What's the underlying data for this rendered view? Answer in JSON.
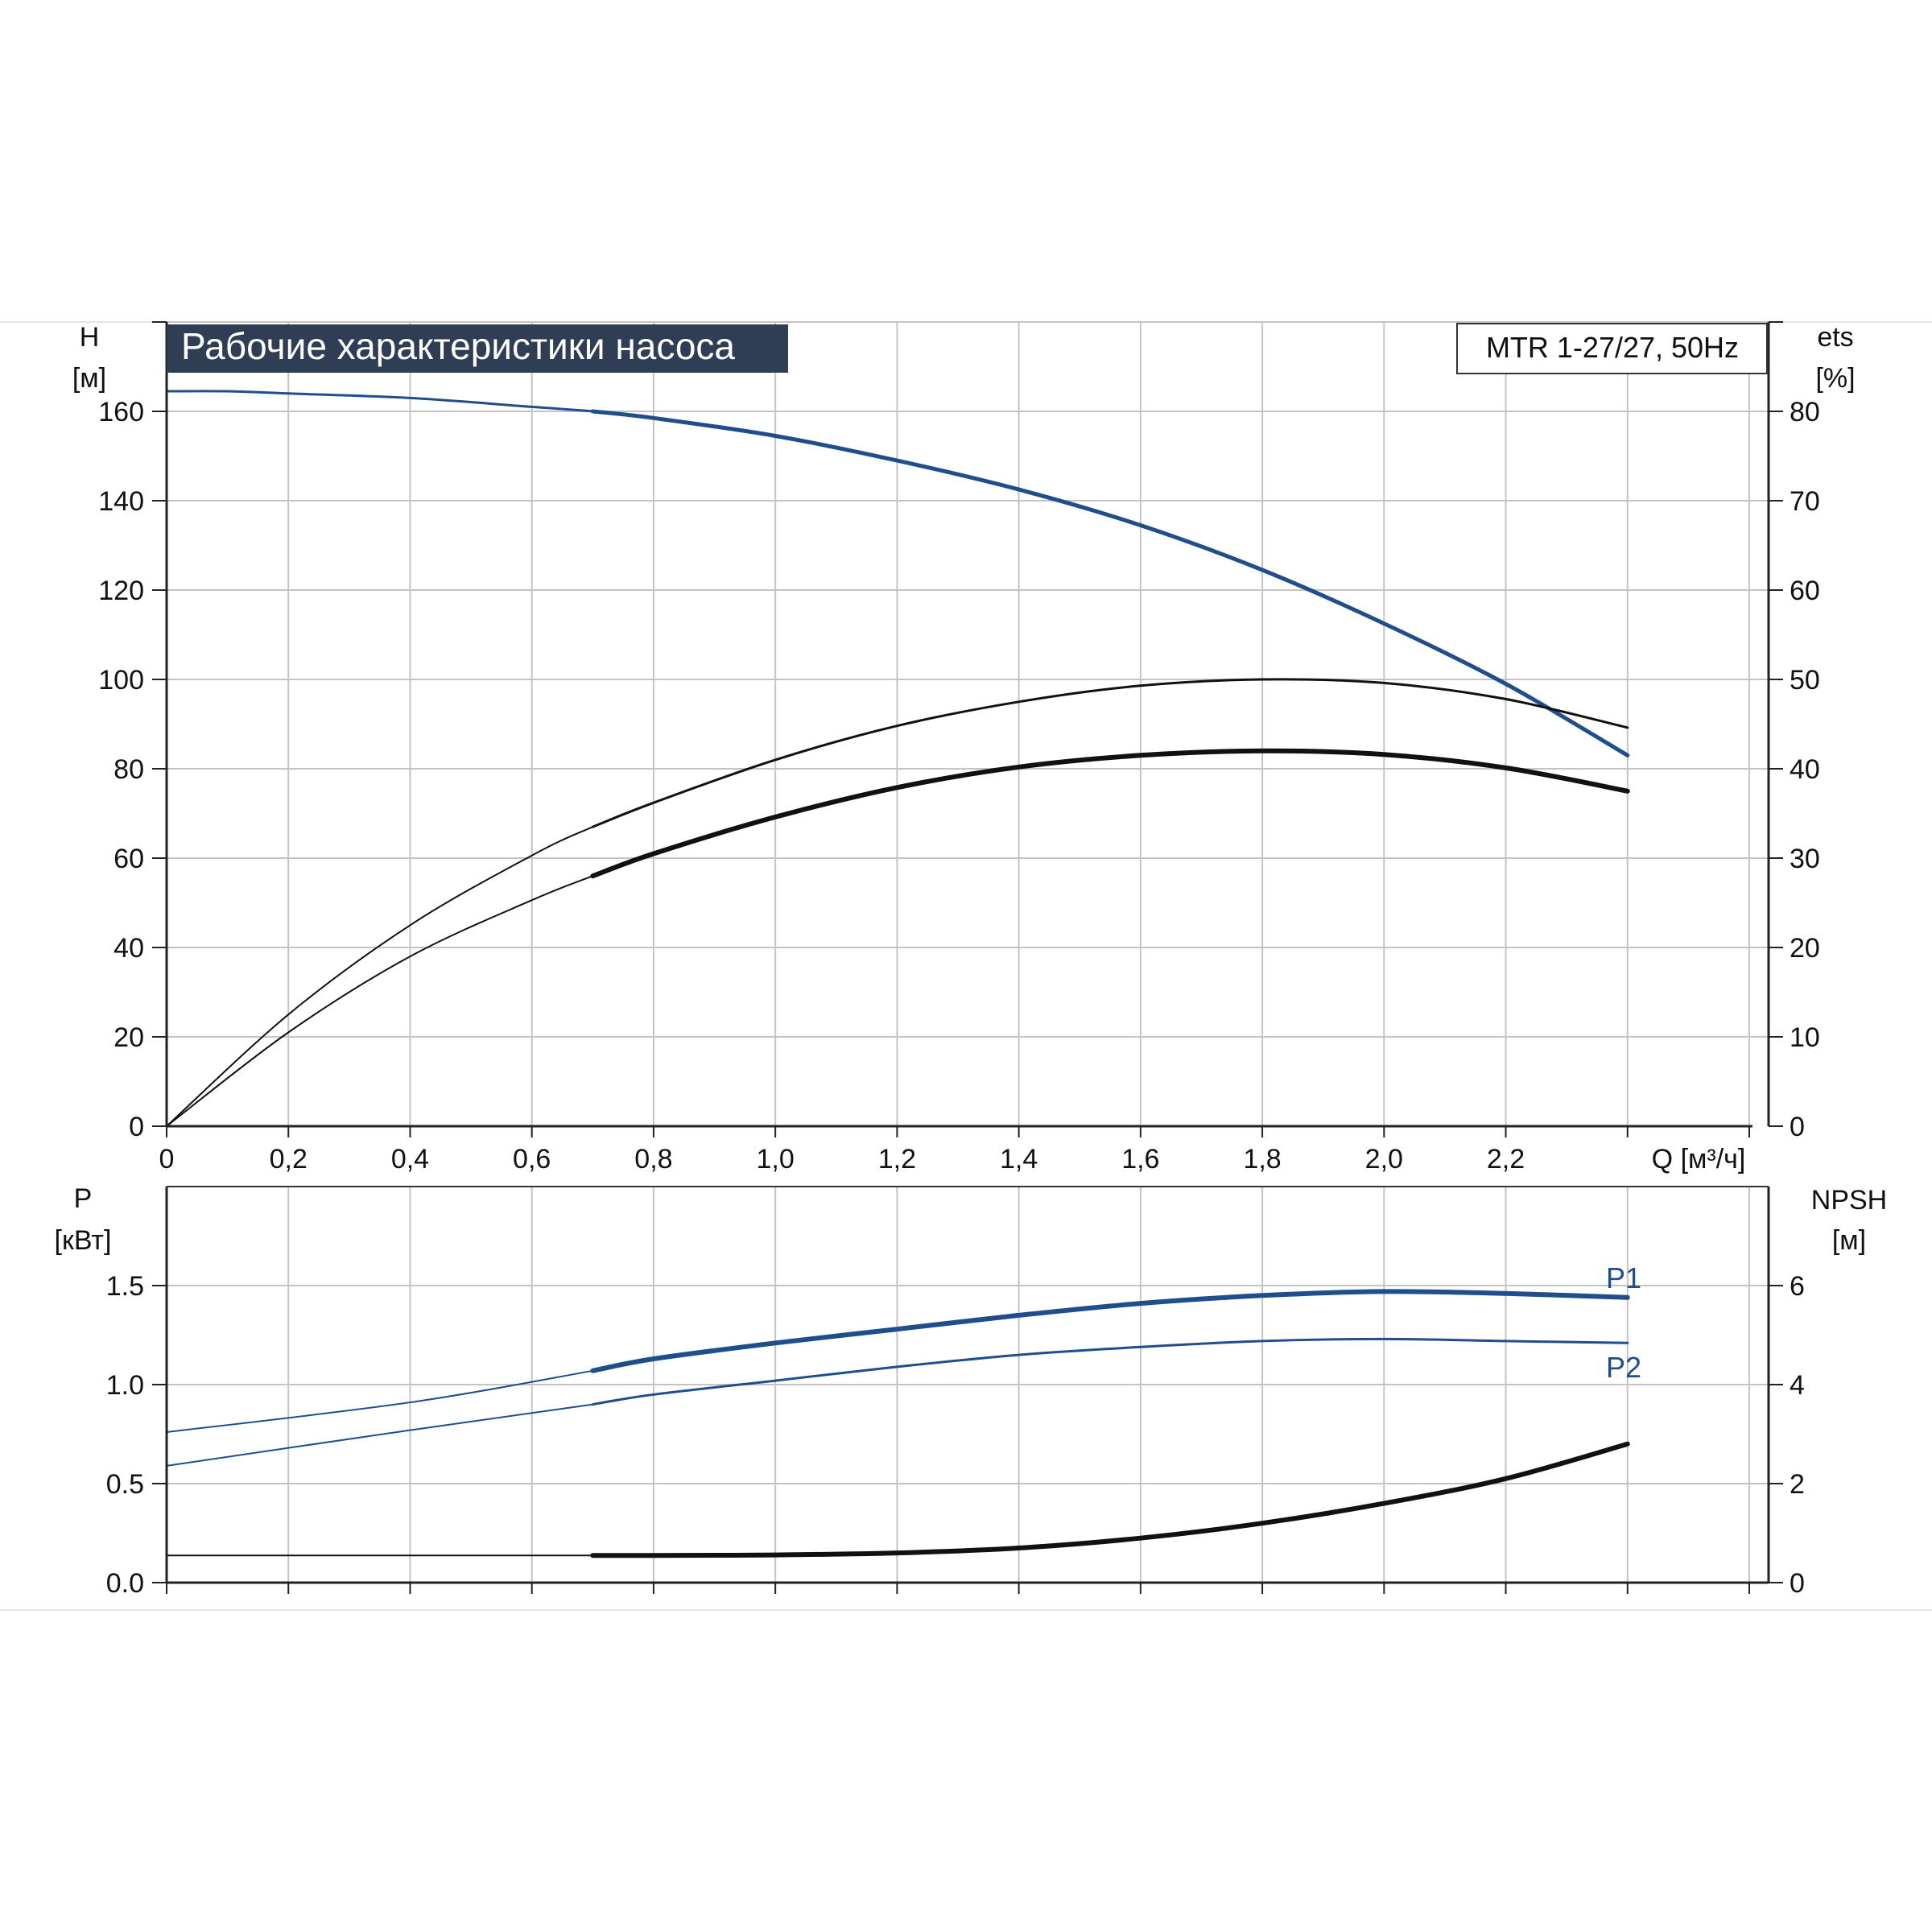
{
  "chart_data": [
    {
      "type": "line",
      "title": "Рабочие характеристики насоса",
      "model_label": "MTR 1-27/27, 50Hz",
      "xlabel": "Q [м³/ч]",
      "ylabel_left": [
        "H",
        "[м]"
      ],
      "ylabel_right": [
        "ets",
        "[%]"
      ],
      "xlim": [
        0,
        2.6
      ],
      "ylim_left": [
        0,
        180
      ],
      "ylim_right": [
        0,
        90
      ],
      "grid": true,
      "x_ticks": [
        "0",
        "0,2",
        "0,4",
        "0,6",
        "0,8",
        "1,0",
        "1,2",
        "1,4",
        "1,6",
        "1,8",
        "2,0",
        "2,2"
      ],
      "x_tick_values": [
        0,
        0.2,
        0.4,
        0.6,
        0.8,
        1.0,
        1.2,
        1.4,
        1.6,
        1.8,
        2.0,
        2.2
      ],
      "y_ticks_left": [
        0,
        20,
        40,
        60,
        80,
        100,
        120,
        140,
        160
      ],
      "y_ticks_right": [
        0,
        10,
        20,
        30,
        40,
        50,
        60,
        70,
        80
      ],
      "series": [
        {
          "axis": "left",
          "color": "#1f4e8c",
          "x": [
            0,
            0.1,
            0.2,
            0.4,
            0.6,
            0.7,
            0.8,
            1.0,
            1.2,
            1.4,
            1.6,
            1.8,
            2.0,
            2.2,
            2.4
          ],
          "y": [
            164.5,
            164.5,
            164,
            163,
            161,
            160,
            158.5,
            154.5,
            149,
            142.5,
            134.5,
            124.5,
            112.5,
            99,
            83
          ]
        },
        {
          "axis": "right",
          "color": "#111111",
          "x": [
            0,
            0.2,
            0.4,
            0.6,
            0.7,
            0.8,
            1.0,
            1.2,
            1.4,
            1.6,
            1.8,
            2.0,
            2.2,
            2.4
          ],
          "y": [
            0,
            12.5,
            22.5,
            30.3,
            33.5,
            36.2,
            41,
            44.8,
            47.5,
            49.3,
            50,
            49.6,
            47.8,
            44.6
          ]
        },
        {
          "axis": "right",
          "color": "#111111",
          "x": [
            0,
            0.2,
            0.4,
            0.6,
            0.7,
            0.8,
            1.0,
            1.2,
            1.4,
            1.6,
            1.8,
            2.0,
            2.2,
            2.4
          ],
          "y": [
            0,
            10.5,
            19,
            25.3,
            28,
            30.5,
            34.6,
            37.9,
            40.2,
            41.5,
            42,
            41.6,
            40.1,
            37.5
          ]
        }
      ]
    },
    {
      "type": "line",
      "xlabel": "Q [м³/ч]",
      "ylabel_left": [
        "P",
        "[кВт]"
      ],
      "ylabel_right": [
        "NPSH",
        "[м]"
      ],
      "xlim": [
        0,
        2.6
      ],
      "ylim_left": [
        0,
        2.0
      ],
      "ylim_right": [
        0,
        8
      ],
      "grid": true,
      "y_ticks_left": [
        "0.0",
        "0.5",
        "1.0",
        "1.5"
      ],
      "y_tick_values_left": [
        0,
        0.5,
        1.0,
        1.5
      ],
      "y_ticks_right": [
        0,
        2,
        4,
        6
      ],
      "series": [
        {
          "name": "P1",
          "axis": "left",
          "color": "#1f4e8c",
          "x": [
            0,
            0.4,
            0.7,
            0.8,
            1.0,
            1.2,
            1.4,
            1.6,
            1.8,
            2.0,
            2.2,
            2.4
          ],
          "y": [
            0.76,
            0.91,
            1.07,
            1.13,
            1.21,
            1.28,
            1.35,
            1.41,
            1.45,
            1.47,
            1.46,
            1.44
          ]
        },
        {
          "name": "P2",
          "axis": "left",
          "color": "#1f4e8c",
          "x": [
            0,
            0.4,
            0.7,
            0.8,
            1.0,
            1.2,
            1.4,
            1.6,
            1.8,
            2.0,
            2.2,
            2.4
          ],
          "y": [
            0.59,
            0.77,
            0.9,
            0.95,
            1.02,
            1.09,
            1.15,
            1.19,
            1.22,
            1.23,
            1.22,
            1.21
          ]
        },
        {
          "axis": "right",
          "color": "#111111",
          "x": [
            0,
            0.7,
            0.8,
            1.0,
            1.2,
            1.4,
            1.6,
            1.8,
            2.0,
            2.2,
            2.4
          ],
          "y": [
            0.55,
            0.55,
            0.55,
            0.56,
            0.6,
            0.7,
            0.9,
            1.2,
            1.6,
            2.1,
            2.8
          ]
        }
      ]
    }
  ]
}
